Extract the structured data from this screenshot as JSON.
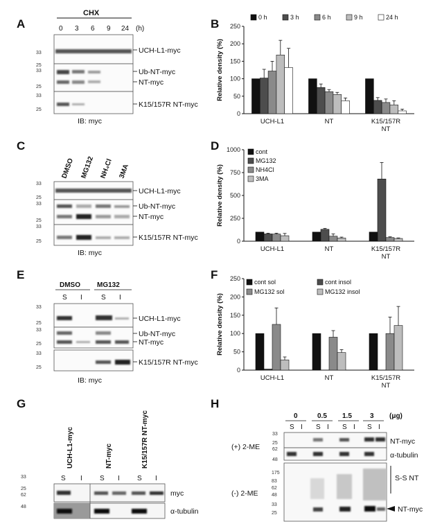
{
  "panel_labels": [
    "A",
    "B",
    "C",
    "D",
    "E",
    "F",
    "G",
    "H"
  ],
  "colors": {
    "c1": "#111111",
    "c2": "#4d4d4d",
    "c3": "#8a8a8a",
    "c4": "#bdbdbd",
    "c5": "#ffffff"
  },
  "blotA": {
    "treatment": "CHX",
    "times": [
      "0",
      "3",
      "6",
      "9",
      "24"
    ],
    "unit": "(h)",
    "markers": [
      "33",
      "25",
      "33",
      "25",
      "33",
      "25"
    ],
    "bands": [
      "UCH-L1-myc",
      "Ub-NT-myc",
      "NT-myc",
      "K15/157R NT-myc"
    ],
    "ib": "IB: myc"
  },
  "blotC": {
    "lanes": [
      "DMSO",
      "MG132",
      "NH₄Cl",
      "3MA"
    ],
    "markers": [
      "33",
      "25",
      "33",
      "25",
      "33",
      "25"
    ],
    "bands": [
      "UCH-L1-myc",
      "Ub-NT-myc",
      "NT-myc",
      "K15/157R NT-myc"
    ],
    "ib": "IB: myc"
  },
  "blotE": {
    "groups": [
      "DMSO",
      "MG132"
    ],
    "lanes": [
      "S",
      "I",
      "S",
      "I"
    ],
    "markers": [
      "33",
      "25",
      "33",
      "25",
      "33",
      "25"
    ],
    "bands": [
      "UCH-L1-myc",
      "Ub-NT-myc",
      "NT-myc",
      "K15/157R NT-myc"
    ],
    "ib": "IB: myc"
  },
  "blotG": {
    "groups": [
      "UCH-L1-myc",
      "NT-myc",
      "K15/157R NT-myc"
    ],
    "lanes": [
      "S",
      "I",
      "S",
      "I",
      "S",
      "I"
    ],
    "markers": [
      "33",
      "25",
      "62",
      "48"
    ],
    "bands": [
      "myc",
      "α-tubulin"
    ]
  },
  "blotH": {
    "doses": [
      "0",
      "0.5",
      "1.5",
      "3"
    ],
    "unit": "(μg)",
    "lanes": [
      "S",
      "I",
      "S",
      "I",
      "S",
      "I",
      "S",
      "I"
    ],
    "markers_top": [
      "33",
      "25",
      "62",
      "48"
    ],
    "markers_bottom": [
      "175",
      "83",
      "62",
      "48",
      "33",
      "25"
    ],
    "conditions": [
      "(+) 2-ME",
      "(-) 2-ME"
    ],
    "bands_top": [
      "NT-myc",
      "α-tubulin"
    ],
    "bands_bottom": [
      "S-S NT",
      "NT-myc"
    ]
  },
  "chart_data": [
    {
      "panel": "B",
      "type": "bar",
      "ylabel": "Relative density (%)",
      "ylim": [
        0,
        250
      ],
      "yticks": [
        0,
        50,
        100,
        150,
        200,
        250
      ],
      "categories": [
        "UCH-L1",
        "NT",
        "K15/157R NT"
      ],
      "legend": "top",
      "series": [
        {
          "name": "0 h",
          "values": [
            100,
            100,
            100
          ],
          "errors": [
            0,
            0,
            0
          ]
        },
        {
          "name": "3 h",
          "values": [
            102,
            75,
            38
          ],
          "errors": [
            25,
            10,
            8
          ]
        },
        {
          "name": "6 h",
          "values": [
            122,
            63,
            32
          ],
          "errors": [
            28,
            6,
            10
          ]
        },
        {
          "name": "9 h",
          "values": [
            168,
            55,
            25
          ],
          "errors": [
            42,
            6,
            12
          ]
        },
        {
          "name": "24 h",
          "values": [
            132,
            37,
            8
          ],
          "errors": [
            55,
            8,
            5
          ]
        }
      ]
    },
    {
      "panel": "D",
      "type": "bar",
      "ylabel": "Relative density (%)",
      "ylim": [
        0,
        1000
      ],
      "yticks": [
        0,
        250,
        500,
        750,
        1000
      ],
      "categories": [
        "UCH-L1",
        "NT",
        "K15/157R NT"
      ],
      "legend": "top-left",
      "series": [
        {
          "name": "cont",
          "values": [
            100,
            100,
            100
          ],
          "errors": [
            0,
            0,
            0
          ]
        },
        {
          "name": "MG132",
          "values": [
            80,
            130,
            680
          ],
          "errors": [
            8,
            10,
            180
          ]
        },
        {
          "name": "NH4Cl",
          "values": [
            78,
            55,
            40
          ],
          "errors": [
            10,
            25,
            8
          ]
        },
        {
          "name": "3MA",
          "values": [
            60,
            35,
            30
          ],
          "errors": [
            25,
            10,
            6
          ]
        }
      ]
    },
    {
      "panel": "F",
      "type": "bar",
      "ylabel": "Relative density (%)",
      "ylim": [
        0,
        250
      ],
      "yticks": [
        0,
        50,
        100,
        150,
        200,
        250
      ],
      "categories": [
        "UCH-L1",
        "NT",
        "K15/157R NT"
      ],
      "legend": "top",
      "series": [
        {
          "name": "cont sol",
          "values": [
            100,
            100,
            100
          ],
          "errors": [
            0,
            0,
            0
          ]
        },
        {
          "name": "cont insol",
          "values": [
            3,
            0,
            0
          ],
          "errors": [
            0,
            0,
            0
          ]
        },
        {
          "name": "MG132 sol",
          "values": [
            125,
            90,
            100
          ],
          "errors": [
            45,
            18,
            45
          ]
        },
        {
          "name": "MG132 insol",
          "values": [
            28,
            48,
            122
          ],
          "errors": [
            8,
            8,
            52
          ]
        }
      ]
    }
  ]
}
